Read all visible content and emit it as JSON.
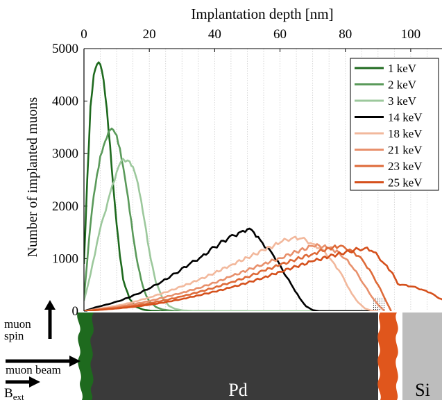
{
  "chart_data": {
    "type": "line",
    "xlabel": "Implantation depth [nm]",
    "ylabel": "Number of implanted muons",
    "xlim": [
      0,
      110
    ],
    "ylim": [
      0,
      5000
    ],
    "xticks": [
      "0",
      "20",
      "40",
      "60",
      "80",
      "100"
    ],
    "yticks": [
      "0",
      "1000",
      "2000",
      "3000",
      "4000",
      "5000"
    ],
    "grid": "vertical dotted",
    "legend_position": "top-right",
    "series": [
      {
        "name": "1 keV",
        "color": "#1e6a1e",
        "x": [
          0,
          1,
          2,
          3,
          4,
          5,
          6,
          7,
          8,
          9,
          10,
          11,
          12,
          14,
          16,
          18,
          20,
          24,
          30,
          40
        ],
        "y": [
          900,
          2500,
          3900,
          4500,
          4700,
          4700,
          4400,
          3850,
          3150,
          2350,
          1650,
          1050,
          600,
          230,
          80,
          30,
          10,
          0,
          0,
          0
        ]
      },
      {
        "name": "2 keV",
        "color": "#5a9a5a",
        "x": [
          0,
          1,
          2,
          3,
          4,
          5,
          6,
          7,
          8,
          9,
          10,
          11,
          12,
          13,
          14,
          15,
          16,
          17,
          18,
          19,
          20,
          22,
          24,
          28,
          35,
          50
        ],
        "y": [
          250,
          950,
          1650,
          2200,
          2600,
          2950,
          3150,
          3300,
          3450,
          3450,
          3350,
          3100,
          2750,
          2350,
          1900,
          1450,
          1050,
          750,
          480,
          300,
          180,
          80,
          30,
          0,
          0,
          0
        ]
      },
      {
        "name": "3 keV",
        "color": "#9cc89c",
        "x": [
          0,
          2,
          4,
          6,
          8,
          10,
          12,
          14,
          15,
          16,
          17,
          18,
          19,
          20,
          21,
          22,
          24,
          26,
          28,
          30,
          34,
          40,
          60,
          90
        ],
        "y": [
          200,
          700,
          1300,
          1800,
          2250,
          2650,
          2900,
          2850,
          2750,
          2550,
          2250,
          1900,
          1550,
          1150,
          850,
          550,
          250,
          100,
          40,
          15,
          0,
          0,
          0,
          0
        ]
      },
      {
        "name": "14 keV",
        "color": "#000000",
        "x": [
          0,
          4,
          8,
          12,
          16,
          20,
          24,
          28,
          32,
          36,
          40,
          44,
          46,
          48,
          50,
          52,
          54,
          56,
          58,
          60,
          62,
          64,
          66,
          68,
          70,
          72,
          74,
          76,
          80,
          90
        ],
        "y": [
          0,
          80,
          140,
          220,
          320,
          430,
          570,
          720,
          880,
          1040,
          1220,
          1380,
          1440,
          1510,
          1560,
          1500,
          1350,
          1200,
          1060,
          880,
          650,
          450,
          250,
          90,
          20,
          0,
          0,
          0,
          0,
          0
        ]
      },
      {
        "name": "18 keV",
        "color": "#f2b89c",
        "x": [
          0,
          5,
          10,
          15,
          20,
          25,
          30,
          35,
          40,
          45,
          50,
          55,
          60,
          62,
          64,
          66,
          68,
          70,
          72,
          74,
          76,
          78,
          80,
          82,
          84,
          86,
          88,
          90
        ],
        "y": [
          0,
          50,
          100,
          170,
          260,
          360,
          470,
          590,
          730,
          880,
          1020,
          1160,
          1300,
          1360,
          1400,
          1380,
          1350,
          1280,
          1200,
          1100,
          950,
          780,
          560,
          330,
          160,
          50,
          10,
          0
        ]
      },
      {
        "name": "21 keV",
        "color": "#e8906c",
        "x": [
          0,
          5,
          10,
          15,
          20,
          25,
          30,
          35,
          40,
          45,
          50,
          55,
          60,
          65,
          70,
          72,
          75,
          78,
          80,
          82,
          84,
          86,
          88,
          90,
          92
        ],
        "y": [
          0,
          40,
          80,
          130,
          190,
          270,
          350,
          440,
          540,
          660,
          780,
          900,
          1010,
          1130,
          1240,
          1250,
          1200,
          1120,
          1000,
          850,
          680,
          480,
          280,
          120,
          0
        ]
      },
      {
        "name": "23 keV",
        "color": "#de6a38",
        "x": [
          0,
          5,
          10,
          15,
          20,
          25,
          30,
          35,
          40,
          45,
          50,
          55,
          60,
          65,
          70,
          75,
          78,
          80,
          82,
          84,
          86,
          88,
          90,
          92,
          94
        ],
        "y": [
          0,
          30,
          60,
          100,
          150,
          210,
          280,
          360,
          450,
          550,
          650,
          770,
          880,
          990,
          1090,
          1200,
          1230,
          1200,
          1150,
          1050,
          900,
          730,
          500,
          250,
          0
        ]
      },
      {
        "name": "25 keV",
        "color": "#d5501c",
        "x": [
          0,
          5,
          10,
          15,
          20,
          25,
          30,
          35,
          40,
          45,
          50,
          55,
          60,
          65,
          70,
          75,
          80,
          84,
          86,
          88,
          90,
          92,
          94,
          95,
          96,
          98,
          100,
          102,
          104,
          106,
          108,
          110
        ],
        "y": [
          0,
          25,
          50,
          80,
          120,
          170,
          230,
          300,
          370,
          450,
          540,
          640,
          750,
          850,
          950,
          1040,
          1120,
          1180,
          1200,
          1150,
          1050,
          900,
          750,
          650,
          520,
          500,
          470,
          440,
          400,
          350,
          270,
          210
        ]
      }
    ]
  },
  "sample": {
    "pd_label": "Pd",
    "si_label": "Si",
    "spin_label_line1": "muon",
    "spin_label_line2": "spin",
    "beam_label": "muon beam",
    "bext_main": "B",
    "bext_sub": "ext"
  }
}
